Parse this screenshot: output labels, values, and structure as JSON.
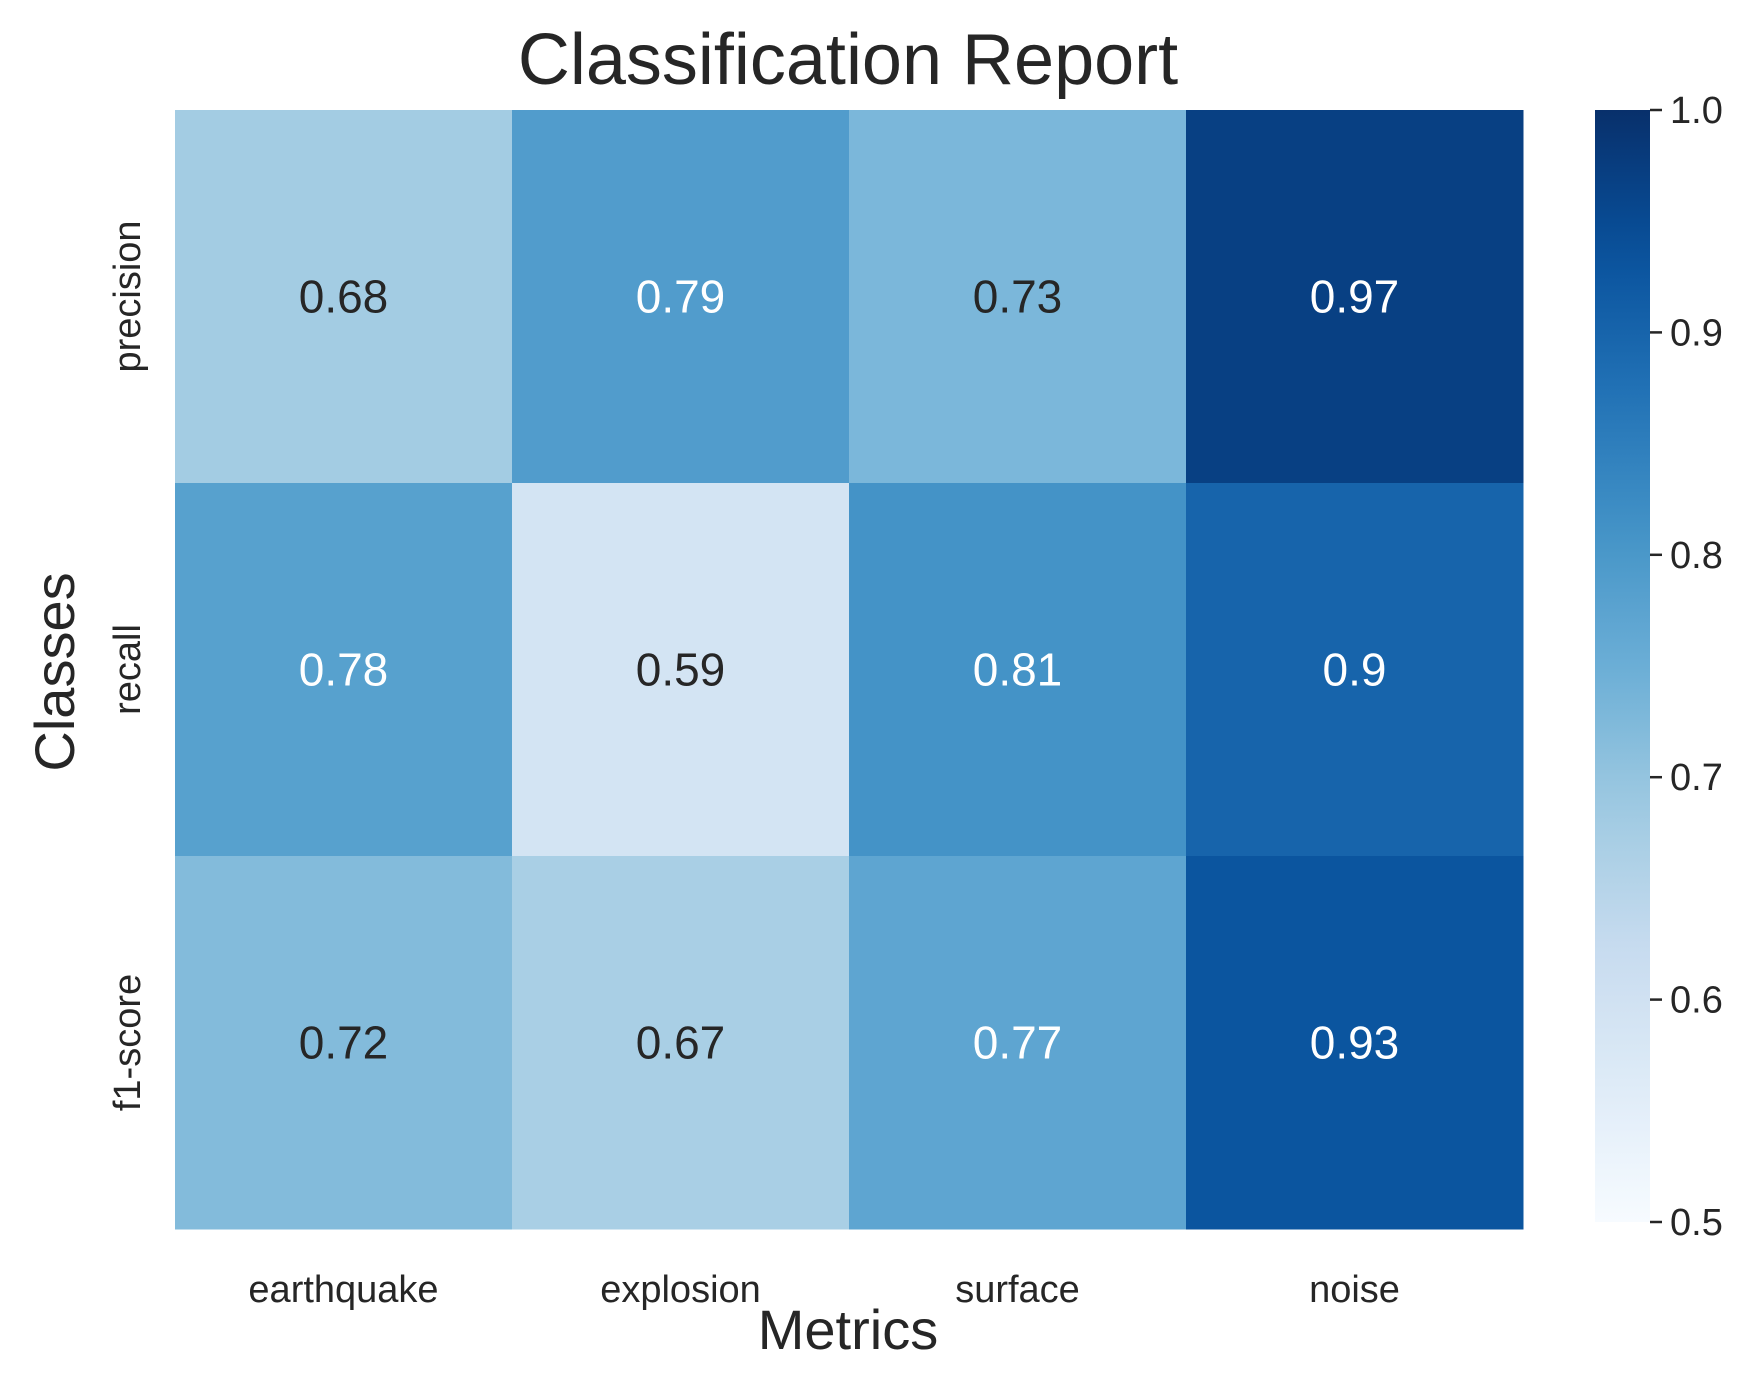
{
  "chart_data": {
    "type": "heatmap",
    "title": "Classification Report",
    "xlabel": "Metrics",
    "ylabel": "Classes",
    "x_categories": [
      "earthquake",
      "explosion",
      "surface",
      "noise"
    ],
    "y_categories": [
      "precision",
      "recall",
      "f1-score"
    ],
    "values": [
      [
        0.68,
        0.79,
        0.73,
        0.97
      ],
      [
        0.78,
        0.59,
        0.81,
        0.9
      ],
      [
        0.72,
        0.67,
        0.77,
        0.93
      ]
    ],
    "value_labels": [
      [
        "0.68",
        "0.79",
        "0.73",
        "0.97"
      ],
      [
        "0.78",
        "0.59",
        "0.81",
        "0.9"
      ],
      [
        "0.72",
        "0.67",
        "0.77",
        "0.93"
      ]
    ],
    "colormap": "Blues",
    "vmin": 0.5,
    "vmax": 1.0,
    "colorbar_ticks": [
      "0.5",
      "0.6",
      "0.7",
      "0.8",
      "0.9",
      "1.0"
    ],
    "colorbar_tick_values": [
      0.5,
      0.6,
      0.7,
      0.8,
      0.9,
      1.0
    ],
    "annotation_colors": {
      "light": "#ffffff",
      "dark": "#262626"
    }
  }
}
